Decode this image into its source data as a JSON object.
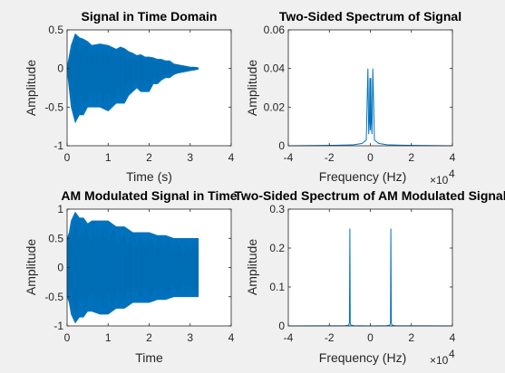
{
  "chart_data": [
    {
      "type": "line",
      "title": "Signal in Time Domain",
      "xlabel": "Time (s)",
      "ylabel": "Amplitude",
      "xlim": [
        0,
        4
      ],
      "ylim": [
        -1,
        0.5
      ],
      "xticks": [
        "0",
        "1",
        "2",
        "3",
        "4"
      ],
      "yticks": [
        "0.5",
        "0",
        "-0.5",
        "-1"
      ],
      "x_multiplier": "",
      "series": [
        {
          "kind": "envelope",
          "x": [
            0,
            0.1,
            0.2,
            0.3,
            0.4,
            0.5,
            0.6,
            0.8,
            1.0,
            1.2,
            1.3,
            1.4,
            1.5,
            1.6,
            1.7,
            1.8,
            1.9,
            2.0,
            2.1,
            2.2,
            2.3,
            2.4,
            2.5,
            2.6,
            2.7,
            2.8,
            2.9,
            3.0,
            3.1,
            3.2
          ],
          "upper": [
            0.02,
            0.3,
            0.45,
            0.4,
            0.38,
            0.35,
            0.3,
            0.32,
            0.3,
            0.25,
            0.28,
            0.26,
            0.22,
            0.2,
            0.17,
            0.18,
            0.15,
            0.15,
            0.14,
            0.12,
            0.12,
            0.1,
            0.1,
            0.06,
            0.05,
            0.04,
            0.03,
            0.02,
            0.02,
            0.01
          ],
          "lower": [
            -0.02,
            -0.5,
            -0.7,
            -0.6,
            -0.6,
            -0.5,
            -0.5,
            -0.5,
            -0.55,
            -0.45,
            -0.45,
            -0.45,
            -0.35,
            -0.3,
            -0.25,
            -0.3,
            -0.3,
            -0.3,
            -0.2,
            -0.2,
            -0.15,
            -0.12,
            -0.12,
            -0.08,
            -0.06,
            -0.05,
            -0.04,
            -0.03,
            -0.02,
            -0.01
          ]
        }
      ]
    },
    {
      "type": "line",
      "title": "Two-Sided Spectrum of Signal",
      "xlabel": "Frequency (Hz)",
      "ylabel": "Amplitude",
      "xlim": [
        -4,
        4
      ],
      "ylim": [
        0,
        0.06
      ],
      "xticks": [
        "-4",
        "-2",
        "0",
        "2",
        "4"
      ],
      "yticks": [
        "0.06",
        "0.04",
        "0.02",
        "0"
      ],
      "x_multiplier": "×10^4",
      "series": [
        {
          "kind": "spectrum",
          "x": [
            -4,
            -2.2,
            -1.5,
            -0.8,
            -0.4,
            -0.2,
            -0.12,
            -0.08,
            -0.05,
            -0.02,
            0,
            0.02,
            0.05,
            0.08,
            0.12,
            0.2,
            0.4,
            0.8,
            1.5,
            2.2,
            4
          ],
          "y": [
            0,
            0.0002,
            0.0003,
            0.0005,
            0.0012,
            0.003,
            0.04,
            0.006,
            0.012,
            0.035,
            0.008,
            0.035,
            0.012,
            0.006,
            0.04,
            0.003,
            0.0012,
            0.0005,
            0.0003,
            0.0002,
            0
          ]
        }
      ]
    },
    {
      "type": "line",
      "title": "AM Modulated Signal in Time",
      "xlabel": "Time",
      "ylabel": "Amplitude",
      "xlim": [
        0,
        4
      ],
      "ylim": [
        -1,
        1
      ],
      "xticks": [
        "0",
        "1",
        "2",
        "3",
        "4"
      ],
      "yticks": [
        "1",
        "0.5",
        "0",
        "-0.5",
        "-1"
      ],
      "x_multiplier": "",
      "series": [
        {
          "kind": "envelope",
          "x": [
            0,
            0.05,
            0.1,
            0.2,
            0.3,
            0.4,
            0.5,
            0.6,
            0.8,
            1.0,
            1.2,
            1.4,
            1.5,
            1.6,
            1.8,
            2.0,
            2.2,
            2.4,
            2.6,
            2.8,
            3.0,
            3.2
          ],
          "upper": [
            0.5,
            0.6,
            0.8,
            0.95,
            0.85,
            0.85,
            0.75,
            0.8,
            0.8,
            0.8,
            0.7,
            0.7,
            0.65,
            0.6,
            0.6,
            0.6,
            0.55,
            0.55,
            0.5,
            0.5,
            0.5,
            0.5
          ],
          "lower": [
            -0.5,
            -0.6,
            -0.8,
            -0.95,
            -0.85,
            -0.85,
            -0.75,
            -0.75,
            -0.8,
            -0.8,
            -0.7,
            -0.7,
            -0.65,
            -0.6,
            -0.6,
            -0.6,
            -0.55,
            -0.55,
            -0.5,
            -0.5,
            -0.5,
            -0.5
          ]
        }
      ]
    },
    {
      "type": "line",
      "title": "Two-Sided Spectrum of AM Modulated Signal",
      "xlabel": "Frequency (Hz)",
      "ylabel": "Amplitude",
      "xlim": [
        -4,
        4
      ],
      "ylim": [
        0,
        0.3
      ],
      "xticks": [
        "-4",
        "-2",
        "0",
        "2",
        "4"
      ],
      "yticks": [
        "0.3",
        "0.2",
        "0.1",
        "0"
      ],
      "x_multiplier": "×10^4",
      "series": [
        {
          "kind": "spectrum",
          "x": [
            -4,
            -1.2,
            -1.05,
            -1.02,
            -1.0,
            -0.98,
            -0.95,
            -0.8,
            0,
            0.8,
            0.95,
            0.98,
            1.0,
            1.02,
            1.05,
            1.2,
            4
          ],
          "y": [
            0,
            0.0005,
            0.002,
            0.008,
            0.25,
            0.008,
            0.002,
            0.0005,
            0,
            0.0005,
            0.002,
            0.008,
            0.25,
            0.008,
            0.002,
            0.0005,
            0
          ]
        }
      ]
    }
  ],
  "colors": {
    "figure_bg": "#f0f0f0",
    "axes_bg": "#ffffff",
    "line": "#0072bd",
    "axis": "#262626"
  }
}
